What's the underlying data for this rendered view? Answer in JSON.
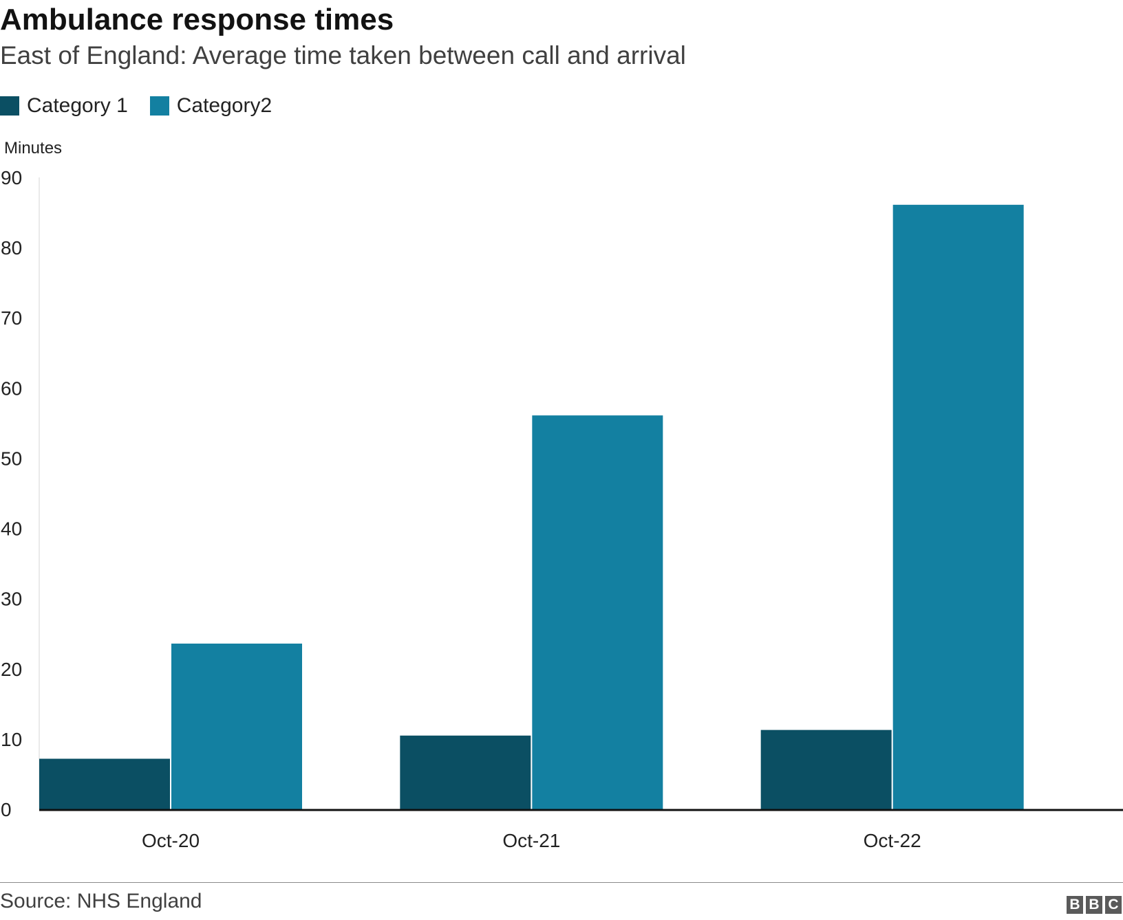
{
  "header": {
    "title": "Ambulance response times",
    "subtitle": "East of England: Average time taken between call and arrival"
  },
  "colors": {
    "category1": "#0b4f63",
    "category2": "#1380a1"
  },
  "footer": {
    "source": "Source: NHS England",
    "logo_letters": [
      "B",
      "B",
      "C"
    ]
  },
  "chart_data": {
    "type": "bar",
    "title": "Ambulance response times",
    "subtitle": "East of England: Average time taken between call and arrival",
    "ylabel": "Minutes",
    "xlabel": "",
    "ylim": [
      0,
      90
    ],
    "yticks": [
      0,
      10,
      20,
      30,
      40,
      50,
      60,
      70,
      80,
      90
    ],
    "categories": [
      "Oct-20",
      "Oct-21",
      "Oct-22"
    ],
    "series": [
      {
        "name": "Category 1",
        "values": [
          7.2,
          10.5,
          11.3
        ]
      },
      {
        "name": "Category2",
        "values": [
          23.6,
          56.1,
          86.1
        ]
      }
    ],
    "legend": "top-left",
    "grid": false
  }
}
